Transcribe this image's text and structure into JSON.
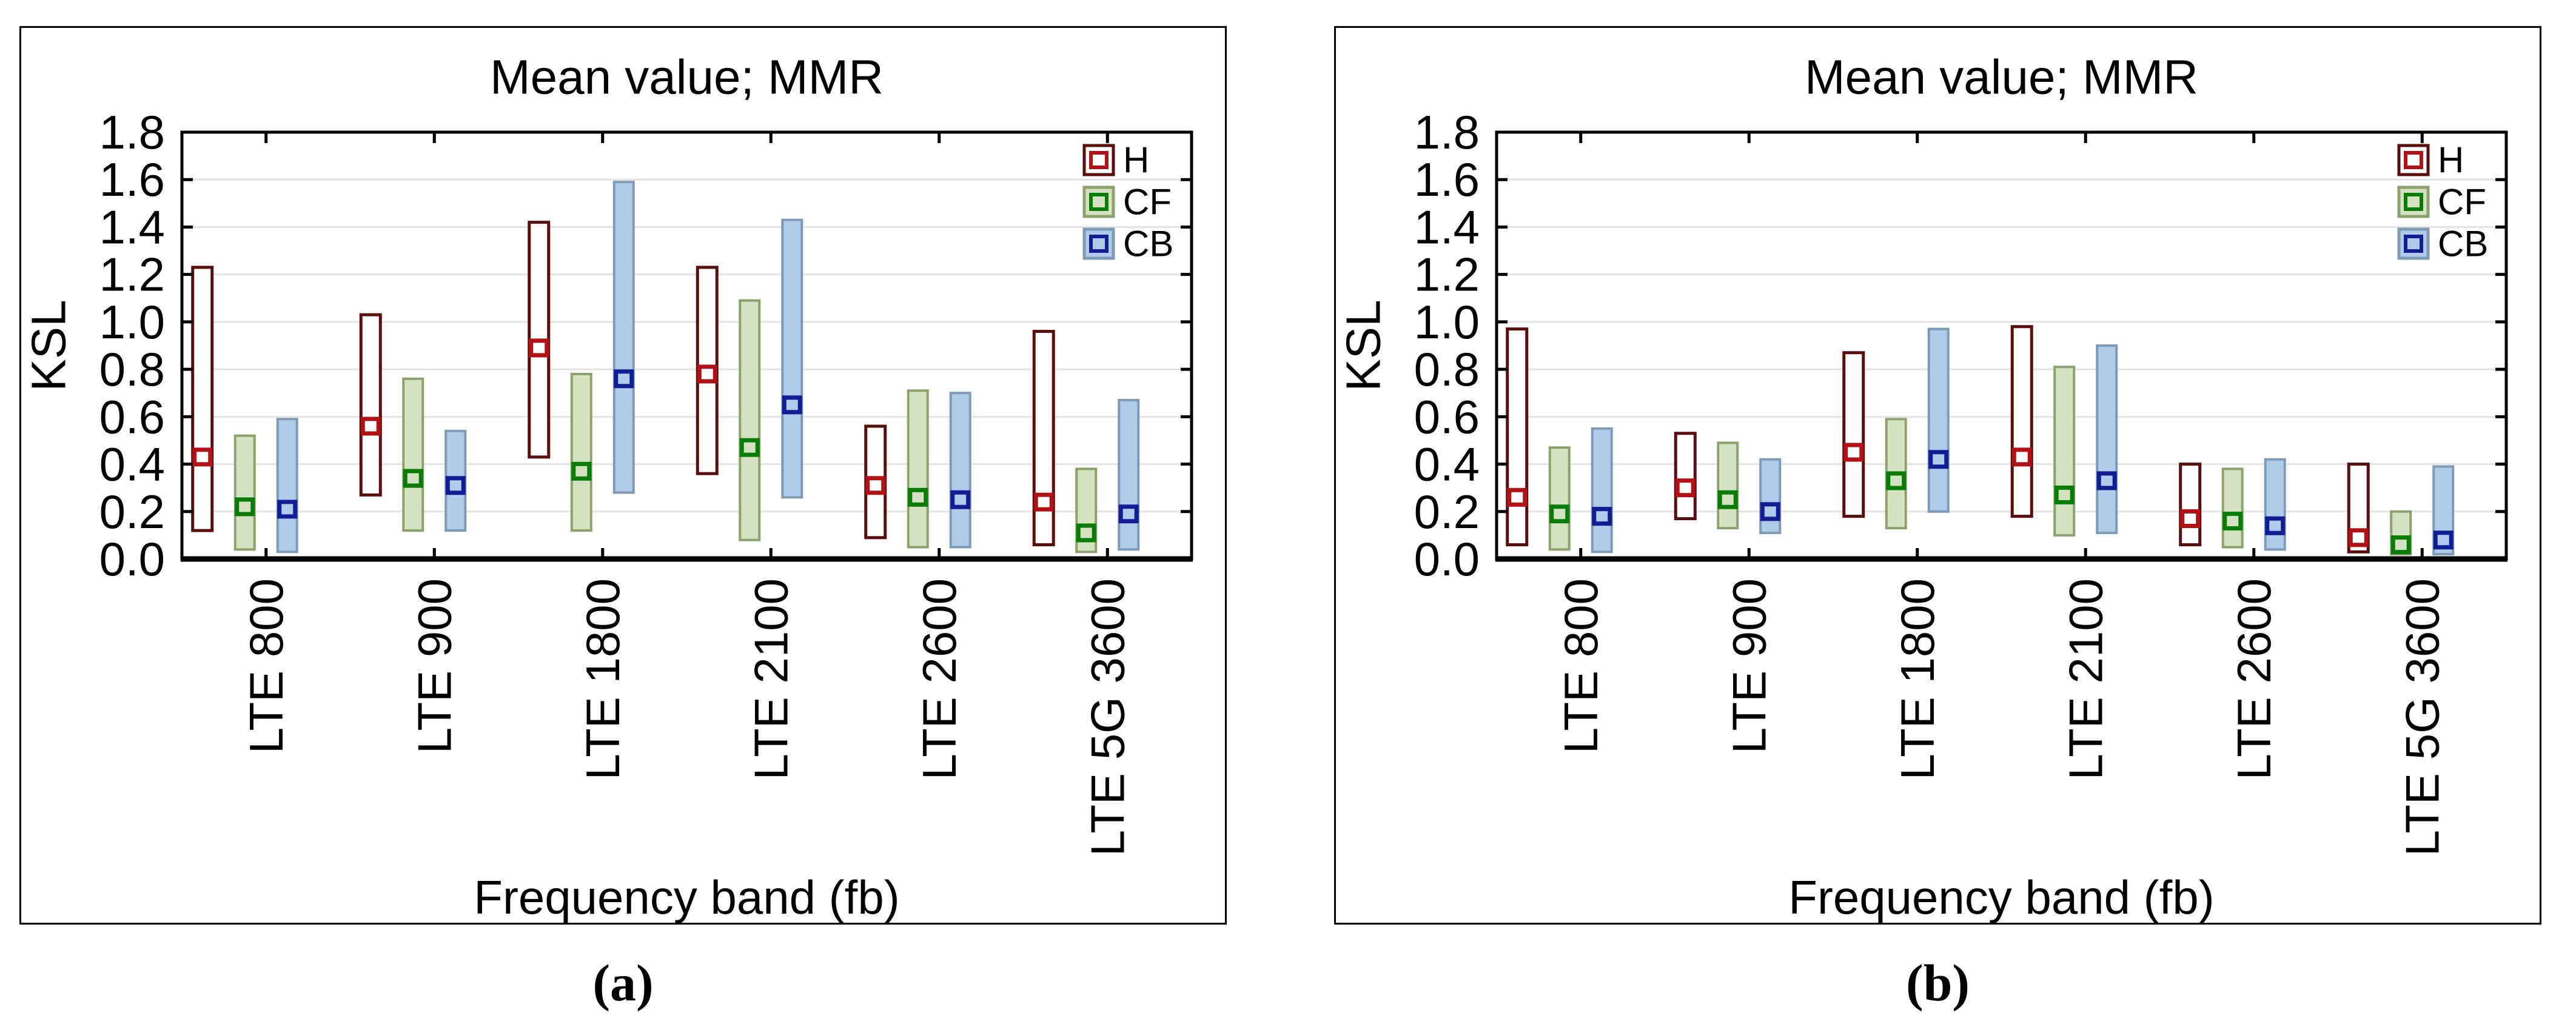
{
  "figure": {
    "background": "#ffffff",
    "panel_count": 2
  },
  "style": {
    "frame_color": "#000000",
    "grid_color": "#e4e4e4",
    "text_color": "#000000",
    "series_colors": {
      "H": {
        "fill": "#ffffff",
        "border": "#5a0e0e",
        "marker_border": "#b21215",
        "marker_fill": "#ffffff"
      },
      "CF": {
        "fill": "#d4e2c2",
        "border": "#8ba36b",
        "marker_border": "#077d07",
        "marker_fill": "#d4e2c2"
      },
      "CB": {
        "fill": "#aecbe9",
        "border": "#7f9ab6",
        "marker_border": "#111c95",
        "marker_fill": "#aecbe9"
      }
    }
  },
  "chart_data": [
    {
      "id": "a",
      "caption": "(a)",
      "type": "bar",
      "subtype": "range-bar-with-mean-marker",
      "title": "Mean value; MMR",
      "xlabel": "Frequency band (fb)",
      "ylabel": "KSL",
      "ylim": [
        0.0,
        1.8
      ],
      "ytick_step": 0.2,
      "yticks": [
        "0.0",
        "0.2",
        "0.4",
        "0.6",
        "0.8",
        "1.0",
        "1.2",
        "1.4",
        "1.6",
        "1.8"
      ],
      "grid": "horizontal",
      "legend_position": "top-right",
      "categories": [
        "LTE 800",
        "LTE 900",
        "LTE 1800",
        "LTE 2100",
        "LTE 2600",
        "LTE 5G 3600"
      ],
      "series": [
        {
          "name": "H",
          "means": [
            0.43,
            0.56,
            0.89,
            0.78,
            0.31,
            0.24
          ],
          "ranges": [
            [
              0.12,
              1.23
            ],
            [
              0.27,
              1.03
            ],
            [
              0.43,
              1.42
            ],
            [
              0.36,
              1.23
            ],
            [
              0.09,
              0.56
            ],
            [
              0.06,
              0.96
            ]
          ]
        },
        {
          "name": "CF",
          "means": [
            0.22,
            0.34,
            0.37,
            0.47,
            0.26,
            0.11
          ],
          "ranges": [
            [
              0.04,
              0.52
            ],
            [
              0.12,
              0.76
            ],
            [
              0.12,
              0.78
            ],
            [
              0.08,
              1.09
            ],
            [
              0.05,
              0.71
            ],
            [
              0.03,
              0.38
            ]
          ]
        },
        {
          "name": "CB",
          "means": [
            0.21,
            0.31,
            0.76,
            0.65,
            0.25,
            0.19
          ],
          "ranges": [
            [
              0.03,
              0.59
            ],
            [
              0.12,
              0.54
            ],
            [
              0.28,
              1.59
            ],
            [
              0.26,
              1.43
            ],
            [
              0.05,
              0.7
            ],
            [
              0.04,
              0.67
            ]
          ]
        }
      ]
    },
    {
      "id": "b",
      "caption": "(b)",
      "type": "bar",
      "subtype": "range-bar-with-mean-marker",
      "title": "Mean value; MMR",
      "xlabel": "Frequency band (fb)",
      "ylabel": "KSL",
      "ylim": [
        0.0,
        1.8
      ],
      "ytick_step": 0.2,
      "yticks": [
        "0.0",
        "0.2",
        "0.4",
        "0.6",
        "0.8",
        "1.0",
        "1.2",
        "1.4",
        "1.6",
        "1.8"
      ],
      "grid": "horizontal",
      "legend_position": "top-right",
      "categories": [
        "LTE 800",
        "LTE 900",
        "LTE 1800",
        "LTE 2100",
        "LTE 2600",
        "LTE 5G 3600"
      ],
      "series": [
        {
          "name": "H",
          "means": [
            0.26,
            0.3,
            0.45,
            0.43,
            0.17,
            0.09
          ],
          "ranges": [
            [
              0.06,
              0.97
            ],
            [
              0.17,
              0.53
            ],
            [
              0.18,
              0.87
            ],
            [
              0.18,
              0.98
            ],
            [
              0.06,
              0.4
            ],
            [
              0.03,
              0.4
            ]
          ]
        },
        {
          "name": "CF",
          "means": [
            0.19,
            0.25,
            0.33,
            0.27,
            0.16,
            0.06
          ],
          "ranges": [
            [
              0.04,
              0.47
            ],
            [
              0.13,
              0.49
            ],
            [
              0.13,
              0.59
            ],
            [
              0.1,
              0.81
            ],
            [
              0.05,
              0.38
            ],
            [
              0.02,
              0.2
            ]
          ]
        },
        {
          "name": "CB",
          "means": [
            0.18,
            0.2,
            0.42,
            0.33,
            0.14,
            0.08
          ],
          "ranges": [
            [
              0.03,
              0.55
            ],
            [
              0.11,
              0.42
            ],
            [
              0.2,
              0.97
            ],
            [
              0.11,
              0.9
            ],
            [
              0.04,
              0.42
            ],
            [
              0.02,
              0.39
            ]
          ]
        }
      ]
    }
  ]
}
